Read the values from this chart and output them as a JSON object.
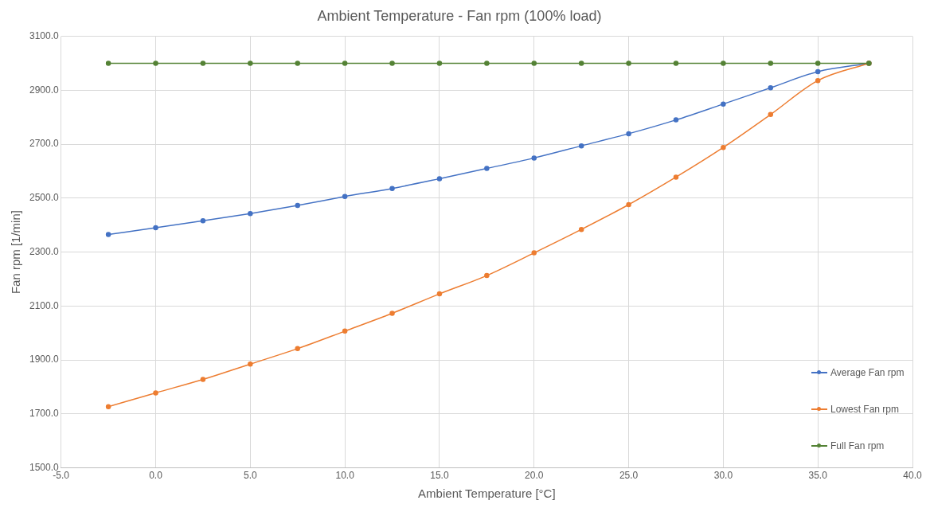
{
  "chart_data": {
    "type": "line",
    "title": "Ambient Temperature - Fan rpm (100% load)",
    "xlabel": "Ambient Temperature [°C]",
    "ylabel": "Fan rpm [1/min]",
    "x": [
      -2.5,
      0,
      2.5,
      5,
      7.5,
      10,
      12.5,
      15,
      17.5,
      20,
      22.5,
      25,
      27.5,
      30,
      32.5,
      35,
      37.7
    ],
    "series": [
      {
        "name": "Average Fan rpm",
        "color": "#4472c4",
        "values": [
          2365,
          2390,
          2416,
          2443,
          2473,
          2506,
          2536,
          2572,
          2610,
          2649,
          2694,
          2739,
          2790,
          2849,
          2909,
          2969,
          3000
        ]
      },
      {
        "name": "Lowest Fan rpm",
        "color": "#ed7d31",
        "values": [
          1727,
          1778,
          1828,
          1885,
          1942,
          2007,
          2073,
          2145,
          2213,
          2297,
          2384,
          2476,
          2578,
          2688,
          2810,
          2936,
          3000
        ]
      },
      {
        "name": "Full Fan rpm",
        "color": "#548235",
        "values": [
          3000,
          3000,
          3000,
          3000,
          3000,
          3000,
          3000,
          3000,
          3000,
          3000,
          3000,
          3000,
          3000,
          3000,
          3000,
          3000,
          3000
        ]
      }
    ],
    "xlim": [
      -5,
      40
    ],
    "xticks": [
      {
        "value": -5,
        "label": "-5.0"
      },
      {
        "value": 0,
        "label": "0.0"
      },
      {
        "value": 5,
        "label": "5.0"
      },
      {
        "value": 10,
        "label": "10.0"
      },
      {
        "value": 15,
        "label": "15.0"
      },
      {
        "value": 20,
        "label": "20.0"
      },
      {
        "value": 25,
        "label": "25.0"
      },
      {
        "value": 30,
        "label": "30.0"
      },
      {
        "value": 35,
        "label": "35.0"
      },
      {
        "value": 40,
        "label": "40.0"
      }
    ],
    "ylim": [
      1500,
      3100
    ],
    "yticks": [
      {
        "value": 1500,
        "label": "1500.0"
      },
      {
        "value": 1700,
        "label": "1700.0"
      },
      {
        "value": 1900,
        "label": "1900.0"
      },
      {
        "value": 2100,
        "label": "2100.0"
      },
      {
        "value": 2300,
        "label": "2300.0"
      },
      {
        "value": 2500,
        "label": "2500.0"
      },
      {
        "value": 2700,
        "label": "2700.0"
      },
      {
        "value": 2900,
        "label": "2900.0"
      },
      {
        "value": 3100,
        "label": "3100.0"
      }
    ],
    "grid": true,
    "legend": "bottom right",
    "marker": "circle",
    "line_style": "solid"
  }
}
